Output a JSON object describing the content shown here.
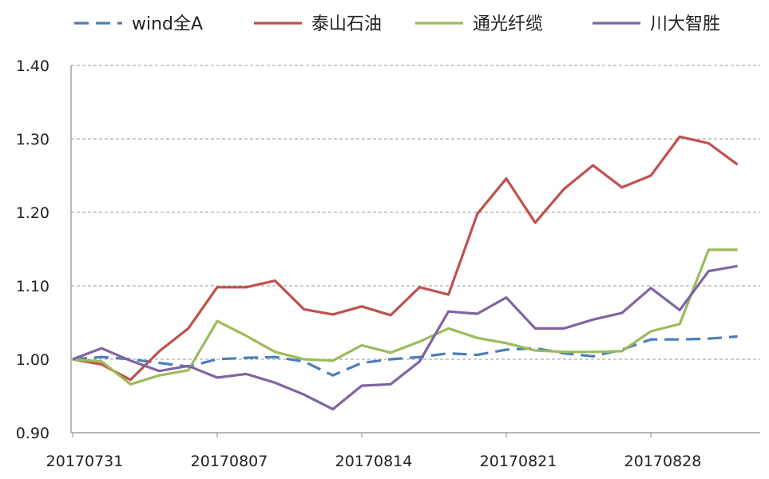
{
  "chart_data": {
    "type": "line",
    "title": "",
    "xlabel": "",
    "ylabel": "",
    "ylim": [
      0.9,
      1.4
    ],
    "y_ticks": [
      "0.90",
      "1.00",
      "1.10",
      "1.20",
      "1.30",
      "1.40"
    ],
    "y_tick_values": [
      0.9,
      1.0,
      1.1,
      1.2,
      1.3,
      1.4
    ],
    "x": [
      "20170731",
      "20170801",
      "20170802",
      "20170803",
      "20170804",
      "20170807",
      "20170808",
      "20170809",
      "20170810",
      "20170811",
      "20170814",
      "20170815",
      "20170816",
      "20170817",
      "20170818",
      "20170821",
      "20170822",
      "20170823",
      "20170824",
      "20170825",
      "20170828",
      "20170829",
      "20170830",
      "20170831"
    ],
    "x_tick_labels": [
      "20170731",
      "20170807",
      "20170814",
      "20170821",
      "20170828"
    ],
    "grid": "horizontal-dashed",
    "legend_position": "top",
    "series": [
      {
        "name": "wind全A",
        "color": "#4a7ebb",
        "dash": "dashed",
        "values": [
          1.0,
          1.003,
          1.0,
          0.995,
          0.99,
          1.0,
          1.002,
          1.003,
          0.997,
          0.978,
          0.995,
          1.0,
          1.003,
          1.008,
          1.006,
          1.013,
          1.015,
          1.008,
          1.004,
          1.013,
          1.027,
          1.027,
          1.028,
          1.031
        ]
      },
      {
        "name": "泰山石油",
        "color": "#c0504d",
        "dash": "solid",
        "values": [
          1.0,
          0.993,
          0.972,
          1.011,
          1.042,
          1.098,
          1.098,
          1.107,
          1.068,
          1.061,
          1.072,
          1.06,
          1.098,
          1.088,
          1.198,
          1.246,
          1.186,
          1.232,
          1.264,
          1.234,
          1.25,
          1.303,
          1.294,
          1.265
        ]
      },
      {
        "name": "通光纤缆",
        "color": "#9bbb59",
        "dash": "solid",
        "values": [
          1.0,
          0.997,
          0.966,
          0.978,
          0.985,
          1.052,
          1.032,
          1.01,
          1.0,
          0.998,
          1.019,
          1.009,
          1.024,
          1.042,
          1.029,
          1.022,
          1.012,
          1.01,
          1.01,
          1.011,
          1.038,
          1.048,
          1.149,
          1.149
        ]
      },
      {
        "name": "川大智胜",
        "color": "#8064a2",
        "dash": "solid",
        "values": [
          1.0,
          1.015,
          0.998,
          0.984,
          0.991,
          0.975,
          0.98,
          0.968,
          0.952,
          0.932,
          0.964,
          0.966,
          0.997,
          1.065,
          1.062,
          1.084,
          1.042,
          1.042,
          1.054,
          1.063,
          1.097,
          1.067,
          1.12,
          1.127
        ]
      }
    ]
  }
}
